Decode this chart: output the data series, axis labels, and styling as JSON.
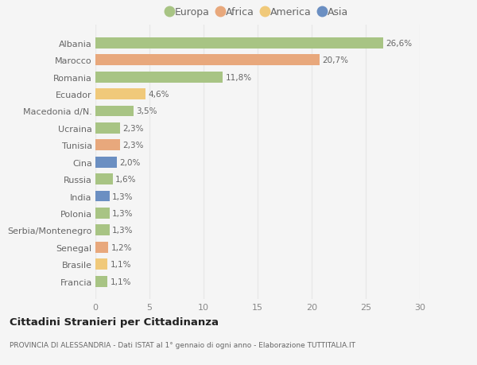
{
  "countries": [
    "Albania",
    "Marocco",
    "Romania",
    "Ecuador",
    "Macedonia d/N.",
    "Ucraina",
    "Tunisia",
    "Cina",
    "Russia",
    "India",
    "Polonia",
    "Serbia/Montenegro",
    "Senegal",
    "Brasile",
    "Francia"
  ],
  "values": [
    26.6,
    20.7,
    11.8,
    4.6,
    3.5,
    2.3,
    2.3,
    2.0,
    1.6,
    1.3,
    1.3,
    1.3,
    1.2,
    1.1,
    1.1
  ],
  "labels": [
    "26,6%",
    "20,7%",
    "11,8%",
    "4,6%",
    "3,5%",
    "2,3%",
    "2,3%",
    "2,0%",
    "1,6%",
    "1,3%",
    "1,3%",
    "1,3%",
    "1,2%",
    "1,1%",
    "1,1%"
  ],
  "colors": [
    "#a8c484",
    "#e8a87c",
    "#a8c484",
    "#f0c97a",
    "#a8c484",
    "#a8c484",
    "#e8a87c",
    "#6b8fc2",
    "#a8c484",
    "#6b8fc2",
    "#a8c484",
    "#a8c484",
    "#e8a87c",
    "#f0c97a",
    "#a8c484"
  ],
  "legend_labels": [
    "Europa",
    "Africa",
    "America",
    "Asia"
  ],
  "legend_colors": [
    "#a8c484",
    "#e8a87c",
    "#f0c97a",
    "#6b8fc2"
  ],
  "xlim": [
    0,
    30
  ],
  "xticks": [
    0,
    5,
    10,
    15,
    20,
    25,
    30
  ],
  "title": "Cittadini Stranieri per Cittadinanza",
  "subtitle": "PROVINCIA DI ALESSANDRIA - Dati ISTAT al 1° gennaio di ogni anno - Elaborazione TUTTITALIA.IT",
  "background_color": "#f5f5f5",
  "grid_color": "#e8e8e8",
  "bar_height": 0.65,
  "label_color": "#666666",
  "tick_color": "#888888"
}
